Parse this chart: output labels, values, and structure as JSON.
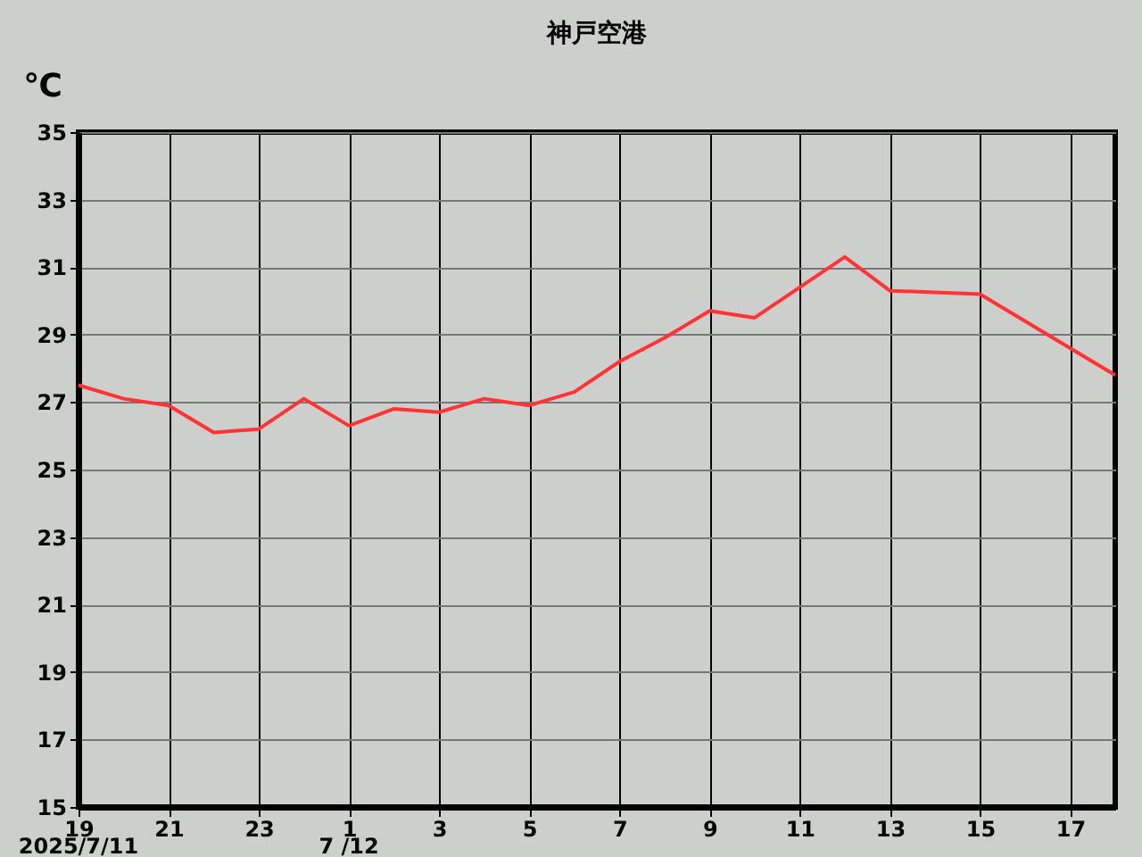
{
  "chart_data": {
    "type": "line",
    "title": "神戸空港",
    "ylabel": "℃",
    "x": [
      "2025-07-11T19:00",
      "2025-07-11T20:00",
      "2025-07-11T21:00",
      "2025-07-11T22:00",
      "2025-07-11T23:00",
      "2025-07-12T00:00",
      "2025-07-12T01:00",
      "2025-07-12T02:00",
      "2025-07-12T03:00",
      "2025-07-12T04:00",
      "2025-07-12T05:00",
      "2025-07-12T06:00",
      "2025-07-12T07:00",
      "2025-07-12T08:00",
      "2025-07-12T09:00",
      "2025-07-12T10:00",
      "2025-07-12T11:00",
      "2025-07-12T12:00",
      "2025-07-12T13:00",
      "2025-07-12T15:00",
      "2025-07-12T17:00",
      "2025-07-12T18:00"
    ],
    "series": [
      {
        "color": "#ff3333",
        "values": [
          27.5,
          27.1,
          26.9,
          26.1,
          26.2,
          27.1,
          26.3,
          26.8,
          26.7,
          27.1,
          26.9,
          27.3,
          28.2,
          28.9,
          29.7,
          29.5,
          30.4,
          31.3,
          30.3,
          30.2,
          28.6,
          27.8
        ]
      }
    ],
    "xlim": [
      "2025-07-11T19:00",
      "2025-07-12T18:00"
    ],
    "xticks": [
      {
        "value": "2025-07-11T19:00",
        "label": "19"
      },
      {
        "value": "2025-07-11T21:00",
        "label": "21"
      },
      {
        "value": "2025-07-11T23:00",
        "label": "23"
      },
      {
        "value": "2025-07-12T01:00",
        "label": "1"
      },
      {
        "value": "2025-07-12T03:00",
        "label": "3"
      },
      {
        "value": "2025-07-12T05:00",
        "label": "5"
      },
      {
        "value": "2025-07-12T07:00",
        "label": "7"
      },
      {
        "value": "2025-07-12T09:00",
        "label": "9"
      },
      {
        "value": "2025-07-12T11:00",
        "label": "11"
      },
      {
        "value": "2025-07-12T13:00",
        "label": "13"
      },
      {
        "value": "2025-07-12T15:00",
        "label": "15"
      },
      {
        "value": "2025-07-12T17:00",
        "label": "17"
      }
    ],
    "ylim": [
      15,
      35
    ],
    "yticks": [
      15,
      17,
      19,
      21,
      23,
      25,
      27,
      29,
      31,
      33,
      35
    ],
    "grid": true,
    "marker": "none",
    "line_style": "solid",
    "annotations": [
      "2025/7/11",
      "7 /12"
    ]
  }
}
